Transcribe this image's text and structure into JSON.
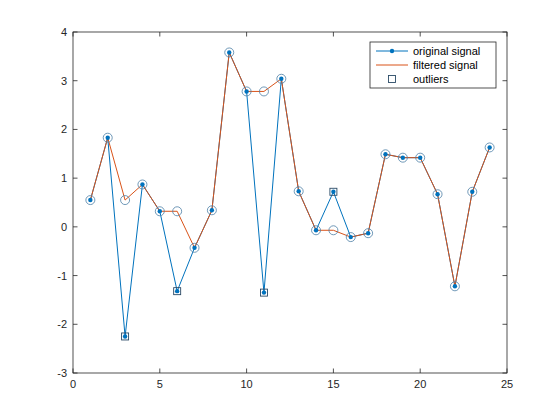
{
  "chart_data": {
    "type": "line",
    "x": [
      1,
      2,
      3,
      4,
      5,
      6,
      7,
      8,
      9,
      10,
      11,
      12,
      13,
      14,
      15,
      16,
      17,
      18,
      19,
      20,
      21,
      22,
      23,
      24
    ],
    "series": [
      {
        "name": "original signal",
        "color": "#0072BD",
        "marker": "dot",
        "line_style": "solid",
        "values": [
          0.55,
          1.83,
          -2.25,
          0.87,
          0.32,
          -1.32,
          -0.43,
          0.34,
          3.58,
          2.78,
          -1.35,
          3.04,
          0.73,
          -0.07,
          0.72,
          -0.21,
          -0.13,
          1.49,
          1.42,
          1.42,
          0.67,
          -1.22,
          0.72,
          1.63
        ]
      },
      {
        "name": "filtered signal",
        "color": "#D95319",
        "marker": "circle",
        "line_style": "solid",
        "values": [
          0.55,
          1.83,
          0.55,
          0.87,
          0.32,
          0.32,
          -0.43,
          0.34,
          3.58,
          2.78,
          2.78,
          3.04,
          0.73,
          -0.07,
          -0.07,
          -0.21,
          -0.13,
          1.49,
          1.42,
          1.42,
          0.67,
          -1.22,
          0.72,
          1.63
        ]
      },
      {
        "name": "outliers",
        "type": "scatter",
        "color": "#0072BD",
        "marker": "square",
        "x": [
          3,
          6,
          11,
          15
        ],
        "values": [
          -2.25,
          -1.32,
          -1.35,
          0.72
        ]
      }
    ],
    "xlim": [
      0,
      25
    ],
    "xticks": [
      0,
      5,
      10,
      15,
      20,
      25
    ],
    "ylim": [
      -3,
      4
    ],
    "yticks": [
      -3,
      -2,
      -1,
      0,
      1,
      2,
      3,
      4
    ],
    "legend": "northeast"
  }
}
